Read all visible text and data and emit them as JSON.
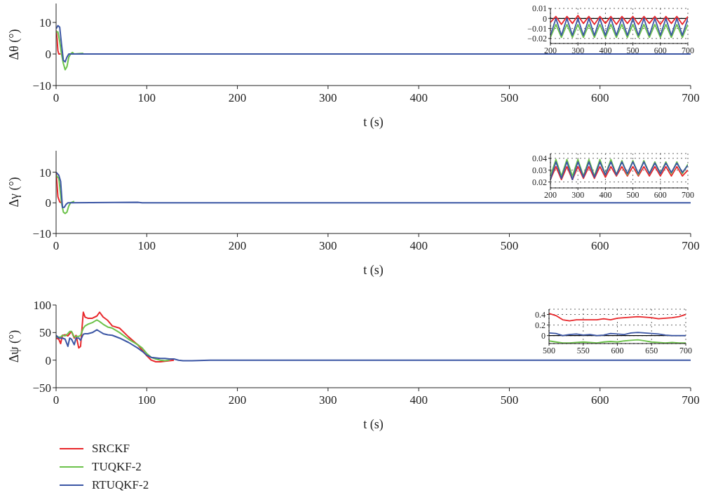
{
  "chart_data": [
    {
      "type": "line",
      "ylabel": "Δθ (°)",
      "xlabel": "t (s)",
      "xlim": [
        0,
        700
      ],
      "xticks": [
        0,
        100,
        200,
        300,
        400,
        500,
        600,
        700
      ],
      "ylim": [
        -10,
        16
      ],
      "yticks": [
        -10,
        0,
        10
      ],
      "grid": false,
      "legend": false,
      "series": [
        {
          "color": "#e8262a",
          "x": [
            0,
            1,
            2,
            3,
            5
          ],
          "values": [
            7.5,
            5,
            1,
            0,
            0
          ]
        },
        {
          "color": "#6cc24a",
          "x": [
            0,
            2,
            4,
            6,
            8,
            10,
            12,
            14,
            16,
            18,
            20,
            30
          ],
          "values": [
            7,
            7,
            4,
            0,
            -3,
            -5,
            -4,
            -1,
            0,
            0.5,
            0,
            0.2
          ]
        },
        {
          "color": "#3a55a4",
          "x": [
            0,
            2,
            4,
            6,
            8,
            10,
            12,
            14,
            16,
            700
          ],
          "values": [
            8,
            9,
            8.5,
            3,
            -2,
            -2.5,
            -1,
            0,
            0,
            0
          ]
        }
      ]
    },
    {
      "type": "line",
      "xlim": [
        200,
        700
      ],
      "xticks": [
        200,
        300,
        400,
        500,
        600,
        700
      ],
      "ylim": [
        -0.025,
        0.01
      ],
      "yticks": [
        -0.02,
        -0.01,
        0,
        0.01
      ],
      "grid": true,
      "legend": false,
      "ref_lines": [
        {
          "axis": "y",
          "value": 0,
          "color": "#000000"
        }
      ],
      "series": [
        {
          "color": "#e8262a",
          "x": [
            200,
            220,
            240,
            260,
            280,
            300,
            320,
            340,
            360,
            380,
            400,
            420,
            440,
            460,
            480,
            500,
            520,
            540,
            560,
            580,
            600,
            620,
            640,
            660,
            680,
            700
          ],
          "values": [
            -0.004,
            0.002,
            -0.006,
            0.002,
            -0.005,
            0.003,
            -0.005,
            0.002,
            -0.006,
            0.002,
            -0.005,
            0.002,
            -0.006,
            0.002,
            -0.005,
            0.002,
            -0.006,
            0.002,
            -0.005,
            0.002,
            -0.006,
            0.002,
            -0.005,
            0.002,
            -0.006,
            0.002
          ]
        },
        {
          "color": "#6cc24a",
          "x": [
            200,
            220,
            240,
            260,
            280,
            300,
            320,
            340,
            360,
            380,
            400,
            420,
            440,
            460,
            480,
            500,
            520,
            540,
            560,
            580,
            600,
            620,
            640,
            660,
            680,
            700
          ],
          "values": [
            -0.019,
            -0.006,
            -0.019,
            -0.006,
            -0.019,
            -0.006,
            -0.019,
            -0.006,
            -0.019,
            -0.006,
            -0.019,
            -0.006,
            -0.019,
            -0.006,
            -0.019,
            -0.006,
            -0.019,
            -0.006,
            -0.019,
            -0.006,
            -0.019,
            -0.006,
            -0.019,
            -0.006,
            -0.019,
            -0.006
          ]
        },
        {
          "color": "#3a55a4",
          "x": [
            200,
            220,
            240,
            260,
            280,
            300,
            320,
            340,
            360,
            380,
            400,
            420,
            440,
            460,
            480,
            500,
            520,
            540,
            560,
            580,
            600,
            620,
            640,
            660,
            680,
            700
          ],
          "values": [
            -0.017,
            0,
            -0.017,
            0,
            -0.017,
            0,
            -0.017,
            0,
            -0.017,
            0,
            -0.017,
            0,
            -0.017,
            0,
            -0.017,
            0,
            -0.017,
            0,
            -0.017,
            0,
            -0.017,
            0,
            -0.017,
            0,
            -0.017,
            0
          ]
        }
      ]
    },
    {
      "type": "line",
      "ylabel": "Δγ (°)",
      "xlabel": "t (s)",
      "xlim": [
        0,
        700
      ],
      "xticks": [
        0,
        100,
        200,
        300,
        400,
        500,
        600,
        700
      ],
      "ylim": [
        -10,
        17
      ],
      "yticks": [
        -10,
        0,
        10
      ],
      "grid": false,
      "legend": false,
      "series": [
        {
          "color": "#e8262a",
          "x": [
            0,
            2,
            4,
            6
          ],
          "values": [
            10,
            2,
            0.3,
            0
          ]
        },
        {
          "color": "#6cc24a",
          "x": [
            0,
            3,
            6,
            8,
            10,
            12,
            14,
            16,
            20
          ],
          "values": [
            9,
            8,
            0,
            -3,
            -3.5,
            -3,
            -1,
            0,
            0.5
          ]
        },
        {
          "color": "#3a55a4",
          "x": [
            0,
            3,
            5,
            7,
            9,
            11,
            13,
            90,
            95,
            700
          ],
          "values": [
            10,
            9,
            7,
            -1.5,
            -1.5,
            -0.5,
            0,
            0.2,
            0,
            0
          ]
        }
      ]
    },
    {
      "type": "line",
      "xlim": [
        200,
        700
      ],
      "xticks": [
        200,
        300,
        400,
        500,
        600,
        700
      ],
      "ylim": [
        0.015,
        0.044
      ],
      "yticks": [
        0.02,
        0.03,
        0.04
      ],
      "grid": true,
      "legend": false,
      "series": [
        {
          "color": "#e8262a",
          "x": [
            200,
            220,
            240,
            260,
            280,
            300,
            320,
            340,
            360,
            380,
            400,
            420,
            440,
            460,
            480,
            500,
            520,
            540,
            560,
            580,
            600,
            620,
            640,
            660,
            680,
            700
          ],
          "values": [
            0.022,
            0.033,
            0.022,
            0.033,
            0.022,
            0.033,
            0.023,
            0.033,
            0.023,
            0.033,
            0.024,
            0.033,
            0.025,
            0.033,
            0.025,
            0.033,
            0.025,
            0.033,
            0.025,
            0.033,
            0.025,
            0.033,
            0.025,
            0.033,
            0.025,
            0.03
          ]
        },
        {
          "color": "#6cc24a",
          "x": [
            200,
            220,
            240,
            260,
            280,
            300,
            320,
            340,
            360,
            380,
            400,
            420,
            440,
            460,
            480,
            500,
            520,
            540,
            560,
            580,
            600,
            620,
            640,
            660,
            680,
            700
          ],
          "values": [
            0.025,
            0.039,
            0.025,
            0.039,
            0.025,
            0.039,
            0.025,
            0.039,
            0.025,
            0.039,
            0.026,
            0.039,
            0.026,
            0.038,
            0.026,
            0.038,
            0.026,
            0.038,
            0.027,
            0.037,
            0.027,
            0.037,
            0.027,
            0.037,
            0.027,
            0.035
          ]
        },
        {
          "color": "#3a55a4",
          "x": [
            200,
            220,
            240,
            260,
            280,
            300,
            320,
            340,
            360,
            380,
            400,
            420,
            440,
            460,
            480,
            500,
            520,
            540,
            560,
            580,
            600,
            620,
            640,
            660,
            680,
            700
          ],
          "values": [
            0.022,
            0.037,
            0.023,
            0.037,
            0.022,
            0.037,
            0.024,
            0.037,
            0.024,
            0.037,
            0.026,
            0.037,
            0.026,
            0.037,
            0.027,
            0.037,
            0.027,
            0.037,
            0.027,
            0.036,
            0.027,
            0.036,
            0.028,
            0.036,
            0.028,
            0.034
          ]
        }
      ]
    },
    {
      "type": "line",
      "ylabel": "Δψ (°)",
      "xlabel": "t (s)",
      "xlim": [
        0,
        700
      ],
      "xticks": [
        0,
        100,
        200,
        300,
        400,
        500,
        600,
        700
      ],
      "ylim": [
        -50,
        100
      ],
      "yticks": [
        -50,
        0,
        50,
        100
      ],
      "grid": false,
      "legend": "bottom left",
      "series": [
        {
          "name": "SRCKF",
          "color": "#e8262a",
          "x": [
            0,
            3,
            5,
            7,
            10,
            13,
            15,
            17,
            20,
            22,
            25,
            27,
            30,
            32,
            35,
            40,
            45,
            48,
            52,
            57,
            62,
            70,
            80,
            90,
            95,
            100,
            105,
            110,
            115,
            120,
            125,
            130
          ],
          "values": [
            40,
            38,
            30,
            45,
            46,
            44,
            48,
            52,
            40,
            45,
            22,
            25,
            87,
            78,
            76,
            76,
            80,
            87,
            78,
            72,
            62,
            58,
            42,
            28,
            18,
            8,
            0,
            -3,
            -3,
            -2,
            -1,
            0
          ]
        },
        {
          "name": "TUQKF-2",
          "color": "#6cc24a",
          "x": [
            0,
            3,
            5,
            7,
            10,
            13,
            15,
            17,
            20,
            22,
            25,
            27,
            30,
            32,
            35,
            40,
            45,
            48,
            52,
            57,
            62,
            70,
            80,
            90,
            95,
            100,
            105,
            110,
            115,
            120,
            125
          ],
          "values": [
            42,
            42,
            42,
            45,
            44,
            48,
            52,
            52,
            42,
            43,
            43,
            45,
            58,
            62,
            65,
            68,
            73,
            70,
            65,
            60,
            58,
            50,
            38,
            28,
            22,
            12,
            5,
            2,
            0,
            -1,
            0
          ]
        },
        {
          "name": "RTUQKF-2",
          "color": "#3a55a4",
          "x": [
            0,
            3,
            5,
            7,
            10,
            13,
            15,
            17,
            20,
            22,
            25,
            27,
            30,
            32,
            35,
            40,
            45,
            48,
            52,
            57,
            62,
            70,
            80,
            90,
            95,
            100,
            105,
            110,
            115,
            120,
            125,
            130,
            135,
            140,
            150,
            170,
            200,
            300,
            400,
            500,
            600,
            700
          ],
          "values": [
            45,
            40,
            40,
            40,
            38,
            25,
            40,
            38,
            28,
            40,
            40,
            36,
            47,
            48,
            48,
            50,
            55,
            52,
            48,
            46,
            45,
            40,
            32,
            22,
            16,
            9,
            5,
            4,
            3,
            3,
            2,
            2,
            0,
            -1,
            -1,
            0,
            0,
            0,
            0,
            0,
            0,
            0
          ]
        }
      ]
    },
    {
      "type": "line",
      "xlim": [
        500,
        700
      ],
      "xticks": [
        500,
        550,
        600,
        650,
        700
      ],
      "ylim": [
        -0.15,
        0.5
      ],
      "yticks": [
        0,
        0.2,
        0.4
      ],
      "grid": true,
      "legend": false,
      "ref_lines": [
        {
          "axis": "y",
          "value": 0,
          "color": "#000000"
        }
      ],
      "series": [
        {
          "color": "#e8262a",
          "x": [
            500,
            510,
            520,
            530,
            540,
            550,
            560,
            570,
            580,
            590,
            600,
            610,
            620,
            630,
            640,
            650,
            660,
            670,
            680,
            690,
            700
          ],
          "values": [
            0.42,
            0.38,
            0.3,
            0.28,
            0.3,
            0.3,
            0.3,
            0.3,
            0.32,
            0.3,
            0.33,
            0.34,
            0.35,
            0.36,
            0.35,
            0.34,
            0.32,
            0.33,
            0.34,
            0.36,
            0.4
          ]
        },
        {
          "color": "#6cc24a",
          "x": [
            500,
            510,
            520,
            530,
            540,
            550,
            560,
            570,
            580,
            590,
            600,
            610,
            620,
            630,
            640,
            650,
            660,
            670,
            680,
            690,
            700
          ],
          "values": [
            -0.1,
            -0.12,
            -0.14,
            -0.14,
            -0.13,
            -0.12,
            -0.13,
            -0.14,
            -0.12,
            -0.11,
            -0.12,
            -0.1,
            -0.09,
            -0.08,
            -0.1,
            -0.12,
            -0.13,
            -0.14,
            -0.13,
            -0.14,
            -0.14
          ]
        },
        {
          "color": "#3a55a4",
          "x": [
            500,
            510,
            520,
            530,
            540,
            550,
            560,
            570,
            580,
            590,
            600,
            610,
            620,
            630,
            640,
            650,
            660,
            670,
            680,
            690,
            700
          ],
          "values": [
            0.05,
            0.04,
            0,
            0.02,
            0.03,
            0.01,
            0.02,
            0,
            0.01,
            0.04,
            0.03,
            0.02,
            0.05,
            0.06,
            0.05,
            0.04,
            0.03,
            0.01,
            0,
            0,
            0
          ]
        }
      ]
    }
  ]
}
